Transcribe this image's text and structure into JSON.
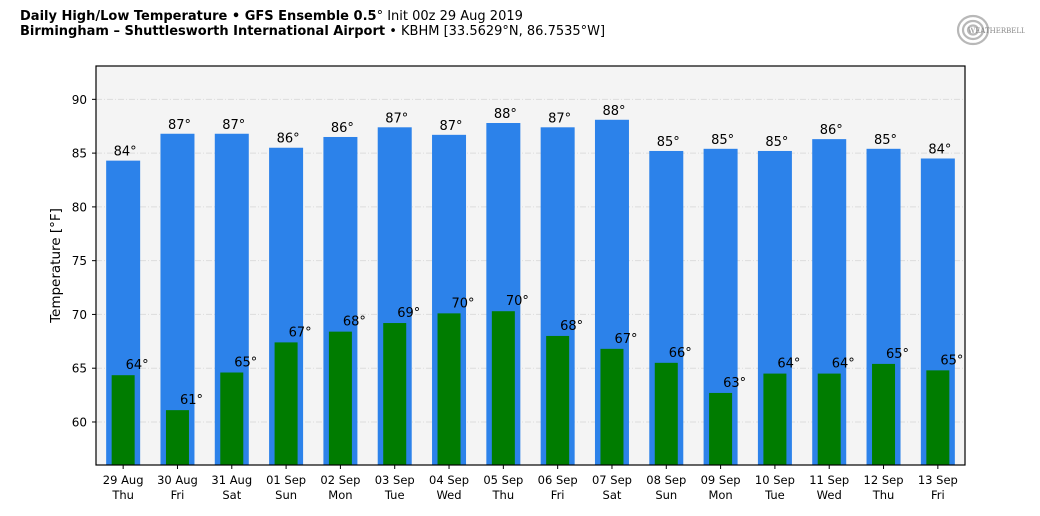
{
  "header": {
    "line1_bold": "Daily High/Low Temperature • GFS Ensemble 0.5",
    "line1_deg": "°",
    "line1_light": " Init 00z 29 Aug 2019",
    "line2_bold": "Birmingham – Shuttlesworth International Airport",
    "line2_light": " • KBHM [33.5629°N, 86.7535°W]"
  },
  "logo": {
    "name": "WeatherBELL Analytics",
    "text": "WEATHERBELL",
    "icon": "swirl-logo-icon"
  },
  "chart_data": {
    "type": "bar",
    "title": "Daily High/Low Temperature • GFS Ensemble 0.5° Init 00z 29 Aug 2019",
    "subtitle": "Birmingham – Shuttlesworth International Airport • KBHM [33.5629°N, 86.7535°W]",
    "xlabel": "",
    "ylabel": "Temperature [°F]",
    "ylim": [
      56,
      93.1
    ],
    "yticks": [
      60,
      65,
      70,
      75,
      80,
      85,
      90
    ],
    "grid": true,
    "categories": [
      [
        "29 Aug",
        "Thu"
      ],
      [
        "30 Aug",
        "Fri"
      ],
      [
        "31 Aug",
        "Sat"
      ],
      [
        "01 Sep",
        "Sun"
      ],
      [
        "02 Sep",
        "Mon"
      ],
      [
        "03 Sep",
        "Tue"
      ],
      [
        "04 Sep",
        "Wed"
      ],
      [
        "05 Sep",
        "Thu"
      ],
      [
        "06 Sep",
        "Fri"
      ],
      [
        "07 Sep",
        "Sat"
      ],
      [
        "08 Sep",
        "Sun"
      ],
      [
        "09 Sep",
        "Mon"
      ],
      [
        "10 Sep",
        "Tue"
      ],
      [
        "11 Sep",
        "Wed"
      ],
      [
        "12 Sep",
        "Thu"
      ],
      [
        "13 Sep",
        "Fri"
      ]
    ],
    "series": [
      {
        "name": "High",
        "color": "#2c82ea",
        "values": [
          84.3,
          86.8,
          86.8,
          85.5,
          86.5,
          87.4,
          86.7,
          87.8,
          87.4,
          88.1,
          85.2,
          85.4,
          85.2,
          86.3,
          85.4,
          84.5
        ],
        "labels": [
          "84°",
          "87°",
          "87°",
          "86°",
          "86°",
          "87°",
          "87°",
          "88°",
          "87°",
          "88°",
          "85°",
          "85°",
          "85°",
          "86°",
          "85°",
          "84°"
        ]
      },
      {
        "name": "Low",
        "color": "#007c00",
        "values": [
          64.35,
          61.1,
          64.6,
          67.4,
          68.4,
          69.2,
          70.1,
          70.3,
          68.0,
          66.8,
          65.5,
          62.7,
          64.5,
          64.5,
          65.4,
          64.8
        ],
        "labels": [
          "64°",
          "61°",
          "65°",
          "67°",
          "68°",
          "69°",
          "70°",
          "70°",
          "68°",
          "67°",
          "66°",
          "63°",
          "64°",
          "64°",
          "65°",
          "65°"
        ]
      }
    ],
    "background": "#f4f4f4",
    "gridcolor": "#dcdcdc"
  }
}
